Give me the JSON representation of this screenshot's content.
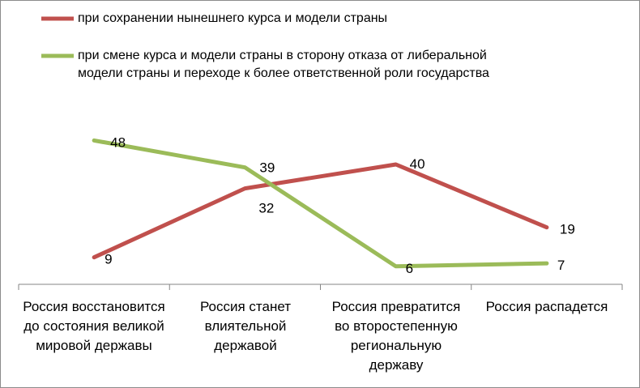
{
  "chart_data": {
    "type": "line",
    "title": "",
    "categories": [
      "Россия восстановится до состояния великой мировой державы",
      "Россия станет влиятельной державой",
      "Россия превратится во второстепенную региональную державу",
      "Россия  распадется"
    ],
    "series": [
      {
        "name": "при сохранении нынешнего курса и модели страны",
        "color": "#C0504D",
        "values": [
          9,
          32,
          40,
          19
        ]
      },
      {
        "name": "при смене курса и модели страны в сторону отказа от либеральной модели страны и переходе к более ответственной роли государства",
        "color": "#9BBB59",
        "values": [
          48,
          39,
          6,
          7
        ]
      }
    ],
    "legend_lines": {
      "series0": [
        "при сохранении нынешнего курса и модели страны"
      ],
      "series1": [
        "при смене курса и модели страны в сторону отказа от либеральной",
        "модели страны и переходе к более ответственной роли государства"
      ]
    },
    "xlabel": "",
    "ylabel": "",
    "ylim": [
      0,
      50
    ],
    "grid": false,
    "legend": "top"
  }
}
